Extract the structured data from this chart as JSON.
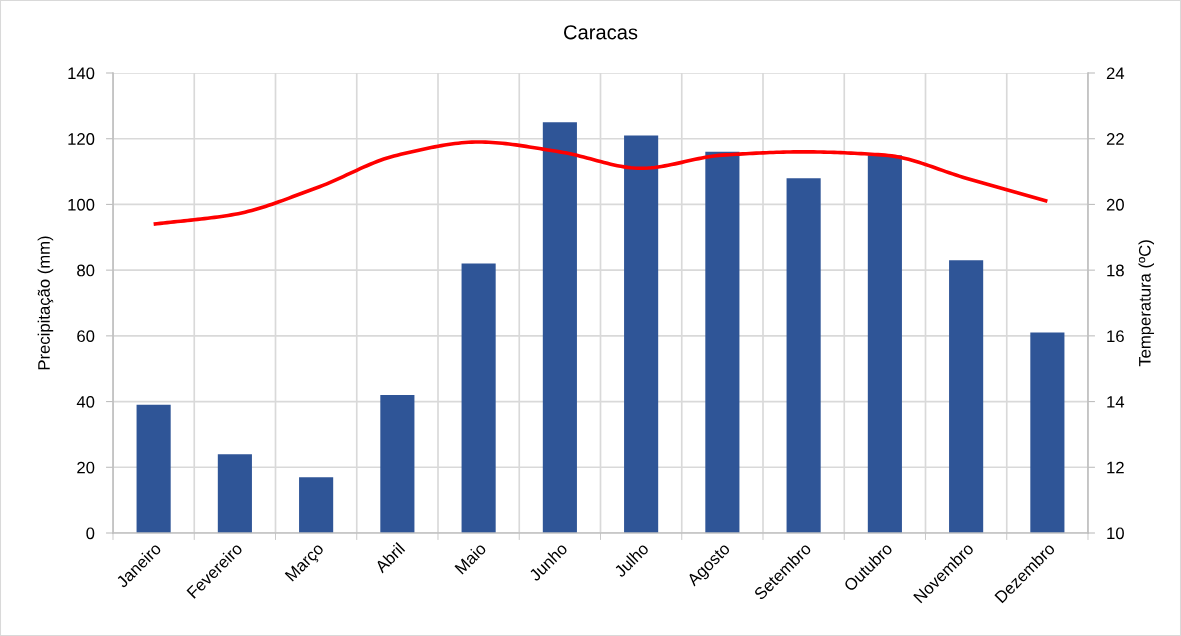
{
  "chart_data": {
    "type": "bar",
    "title": "Caracas",
    "ylabel": "Precipitação (mm)",
    "y2label": "Temperatura (ºC)",
    "categories": [
      "Janeiro",
      "Fevereiro",
      "Março",
      "Abril",
      "Maio",
      "Junho",
      "Julho",
      "Agosto",
      "Setembro",
      "Outubro",
      "Novembro",
      "Dezembro"
    ],
    "series": [
      {
        "color": "#2f5597",
        "values": [
          39,
          24,
          17,
          42,
          82,
          125,
          121,
          116,
          108,
          115,
          83,
          61
        ]
      },
      {
        "type": "line",
        "axis": "y2",
        "color": "#ff0000",
        "values": [
          19.4,
          19.7,
          20.5,
          21.5,
          21.9,
          21.6,
          21.1,
          21.5,
          21.6,
          21.5,
          20.8,
          20.1
        ]
      }
    ],
    "ylim": [
      0,
      140
    ],
    "yticks": [
      0,
      20,
      40,
      60,
      80,
      100,
      120,
      140
    ],
    "y2lim": [
      10,
      24
    ],
    "y2ticks": [
      10,
      12,
      14,
      16,
      18,
      20,
      22,
      24
    ],
    "grid": true
  }
}
